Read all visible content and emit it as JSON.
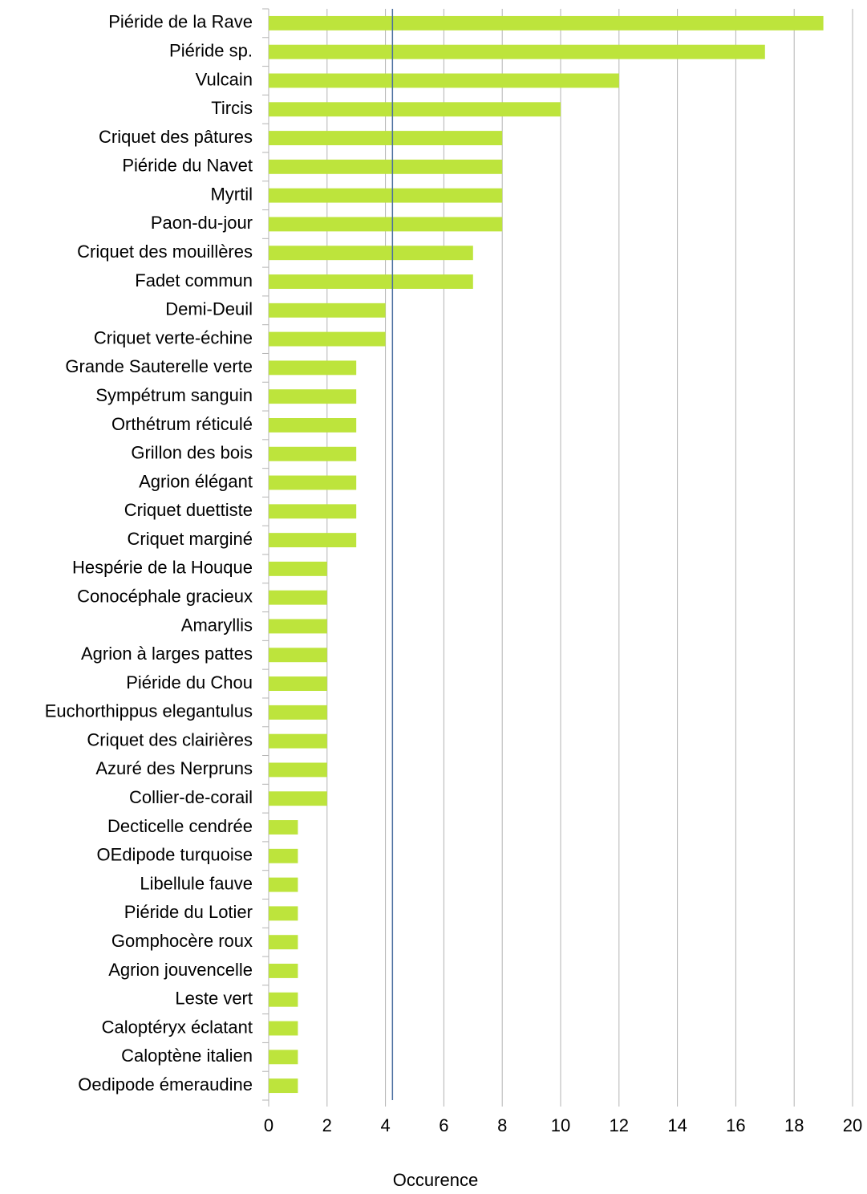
{
  "chart_data": {
    "type": "barh",
    "categories": [
      "Piéride de la Rave",
      "Piéride sp.",
      "Vulcain",
      "Tircis",
      "Criquet des pâtures",
      "Piéride du Navet",
      "Myrtil",
      "Paon-du-jour",
      "Criquet des mouillères",
      "Fadet commun",
      "Demi-Deuil",
      "Criquet verte-échine",
      "Grande Sauterelle verte",
      "Sympétrum sanguin",
      "Orthétrum réticulé",
      "Grillon des bois",
      "Agrion élégant",
      "Criquet duettiste",
      "Criquet marginé",
      "Hespérie de la Houque",
      "Conocéphale gracieux",
      "Amaryllis",
      "Agrion à larges pattes",
      "Piéride du Chou",
      "Euchorthippus elegantulus",
      "Criquet des clairières",
      "Azuré des Nerpruns",
      "Collier-de-corail",
      "Decticelle cendrée",
      "OEdipode turquoise",
      "Libellule fauve",
      "Piéride du Lotier",
      "Gomphocère roux",
      "Agrion jouvencelle",
      "Leste vert",
      "Caloptéryx éclatant",
      "Caloptène italien",
      "Oedipode émeraudine"
    ],
    "values": [
      19,
      17,
      12,
      10,
      8,
      8,
      8,
      8,
      7,
      7,
      4,
      4,
      3,
      3,
      3,
      3,
      3,
      3,
      3,
      2,
      2,
      2,
      2,
      2,
      2,
      2,
      2,
      2,
      1,
      1,
      1,
      1,
      1,
      1,
      1,
      1,
      1,
      1
    ],
    "color": "#bde43c",
    "xlabel": "Occurence",
    "xlim": [
      0,
      20
    ],
    "xticks": [
      0,
      2,
      4,
      6,
      8,
      10,
      12,
      14,
      16,
      18,
      20
    ],
    "grid": true,
    "reference_line": {
      "value": 4.24,
      "color": "#4a6fa0"
    }
  }
}
